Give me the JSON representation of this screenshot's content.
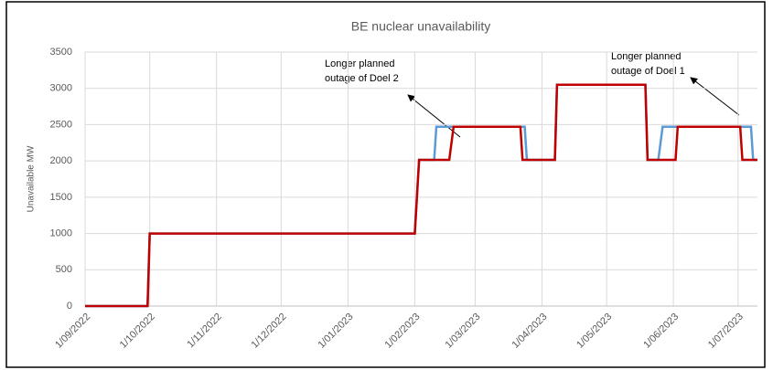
{
  "chart_data": {
    "type": "step-line",
    "title": "BE nuclear unavailability",
    "y_label": "Unavailable MW",
    "xlim": [
      "2022-09-01",
      "2023-07-10"
    ],
    "xticks": [
      {
        "value": "2022-09-01",
        "label": "1/09/2022"
      },
      {
        "value": "2022-10-01",
        "label": "1/10/2022"
      },
      {
        "value": "2022-11-01",
        "label": "1/11/2022"
      },
      {
        "value": "2022-12-01",
        "label": "1/12/2022"
      },
      {
        "value": "2023-01-01",
        "label": "1/01/2023"
      },
      {
        "value": "2023-02-01",
        "label": "1/02/2023"
      },
      {
        "value": "2023-03-01",
        "label": "1/03/2023"
      },
      {
        "value": "2023-04-01",
        "label": "1/04/2023"
      },
      {
        "value": "2023-05-01",
        "label": "1/05/2023"
      },
      {
        "value": "2023-06-01",
        "label": "1/06/2023"
      },
      {
        "value": "2023-07-01",
        "label": "1/07/2023"
      }
    ],
    "ylim": [
      0,
      3500
    ],
    "yticks": [
      0,
      500,
      1000,
      1500,
      2000,
      2500,
      3000,
      3500
    ],
    "grid": true,
    "series": [
      {
        "color": "#5b9bd5",
        "x": [
          "2022-09-01",
          "2022-09-30",
          "2022-10-01",
          "2023-02-01",
          "2023-02-03",
          "2023-02-10",
          "2023-02-11",
          "2023-03-24",
          "2023-03-25",
          "2023-04-07",
          "2023-04-08",
          "2023-05-19",
          "2023-05-20",
          "2023-05-25",
          "2023-05-27",
          "2023-07-07",
          "2023-07-08",
          "2023-07-10"
        ],
        "values": [
          0,
          0,
          1000,
          1000,
          2015,
          2015,
          2470,
          2470,
          2015,
          2015,
          3050,
          3050,
          2015,
          2015,
          2470,
          2470,
          2015,
          2015
        ]
      },
      {
        "color": "#c00000",
        "x": [
          "2022-09-01",
          "2022-09-30",
          "2022-10-01",
          "2023-02-01",
          "2023-02-03",
          "2023-02-17",
          "2023-02-19",
          "2023-03-22",
          "2023-03-23",
          "2023-04-07",
          "2023-04-08",
          "2023-05-19",
          "2023-05-20",
          "2023-06-02",
          "2023-06-03",
          "2023-07-02",
          "2023-07-03",
          "2023-07-10"
        ],
        "values": [
          0,
          0,
          1000,
          1000,
          2015,
          2015,
          2470,
          2470,
          2015,
          2015,
          3050,
          3050,
          2015,
          2015,
          2470,
          2470,
          2015,
          2015
        ]
      }
    ],
    "annotations": [
      {
        "lines": [
          "Longer planned",
          "outage of Doel 2"
        ]
      },
      {
        "lines": [
          "Longer planned",
          "outage of Doel 1"
        ]
      }
    ]
  }
}
